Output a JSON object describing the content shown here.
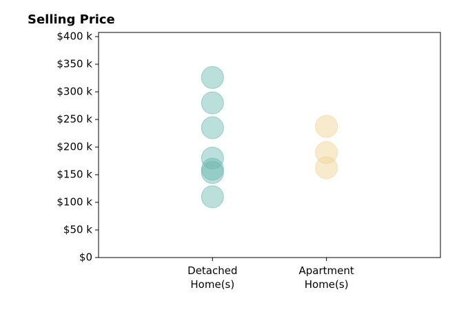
{
  "chart_data": {
    "type": "strip",
    "title": "Selling Price",
    "categories": [
      "Detached\nHome(s)",
      "Apartment\nHome(s)"
    ],
    "values": [
      [
        326000,
        280000,
        235000,
        180000,
        160000,
        154000,
        110000
      ],
      [
        237500,
        190000,
        162500
      ]
    ],
    "colors": [
      "#69b8ae",
      "#f0d291"
    ],
    "ylim": [
      0,
      407500
    ],
    "yticks": [
      {
        "value": 0,
        "label": "$0"
      },
      {
        "value": 50000,
        "label": "$50 k"
      },
      {
        "value": 100000,
        "label": "$100 k"
      },
      {
        "value": 150000,
        "label": "$150 k"
      },
      {
        "value": 200000,
        "label": "$200 k"
      },
      {
        "value": 250000,
        "label": "$250 k"
      },
      {
        "value": 300000,
        "label": "$300 k"
      },
      {
        "value": 350000,
        "label": "$350 k"
      },
      {
        "value": 400000,
        "label": "$400 k"
      }
    ],
    "grid": false
  }
}
